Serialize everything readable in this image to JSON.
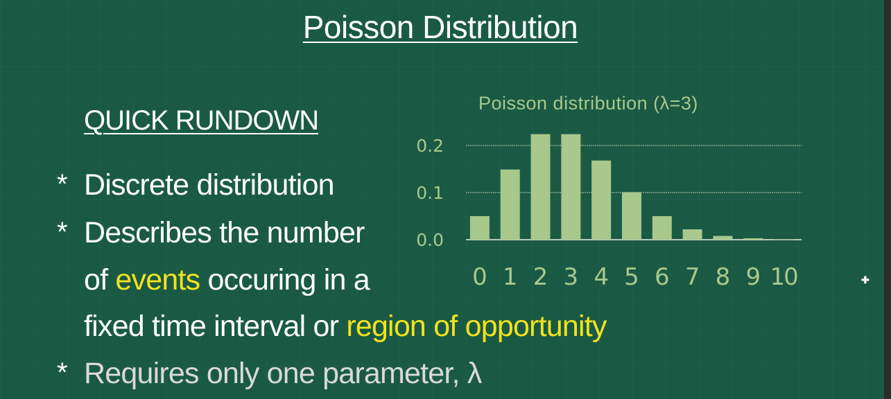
{
  "title": "Poisson Distribution",
  "rundown_heading": "QUICK RUNDOWN",
  "bullets": {
    "b1": "Discrete distribution",
    "b2_line1": "Describes the number",
    "b2_of": "of ",
    "b2_events": "events",
    "b2_rest": " occuring in a",
    "b2_line3": "fixed time interval or ",
    "b2_region": "region of opportunity",
    "b3": "Requires only one parameter, λ"
  },
  "bullet_marker": "*",
  "colors": {
    "background": "#1a5a44",
    "text": "#ffffff",
    "highlight": "#f2e21e",
    "chart": "#a8c88c"
  },
  "chart_data": {
    "type": "bar",
    "title": "Poisson distribution (λ=3)",
    "categories": [
      "0",
      "1",
      "2",
      "3",
      "4",
      "5",
      "6",
      "7",
      "8",
      "9",
      "10"
    ],
    "values": [
      0.05,
      0.149,
      0.224,
      0.224,
      0.168,
      0.101,
      0.05,
      0.022,
      0.008,
      0.003,
      0.001
    ],
    "yticks": [
      "0.0",
      "0.1",
      "0.2"
    ],
    "ylim": [
      0,
      0.23
    ],
    "grid": true
  }
}
